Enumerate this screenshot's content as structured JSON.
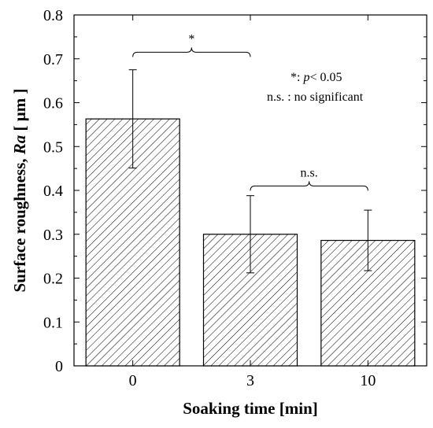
{
  "chart_data": {
    "type": "bar",
    "title": "",
    "categories": [
      "0",
      "3",
      "10"
    ],
    "values": [
      0.563,
      0.3,
      0.286
    ],
    "errors": [
      0.112,
      0.088,
      0.069
    ],
    "xlabel": "Soaking time [min]",
    "ylabel": {
      "prefix": "Surface roughness, ",
      "symbol": "Ra",
      "unit": " [ μm ]"
    },
    "ylim": [
      0,
      0.8
    ],
    "yticks": [
      "0",
      "0.1",
      "0.2",
      "0.3",
      "0.4",
      "0.5",
      "0.6",
      "0.7",
      "0.8"
    ],
    "grid": false,
    "bar_fill": "diagonal-hatch",
    "colors": {
      "bar_edge": "#000000",
      "hatch": "#000000",
      "background": "#ffffff"
    },
    "significance": [
      {
        "from": 0,
        "to": 1,
        "label": "*",
        "y": 0.715
      },
      {
        "from": 1,
        "to": 2,
        "label": "n.s.",
        "y": 0.41
      }
    ],
    "legend_notes": {
      "star_prefix": "*: ",
      "p_symbol": "p",
      "star_rest": "< 0.05",
      "ns_text": "n.s. : no significant"
    }
  }
}
